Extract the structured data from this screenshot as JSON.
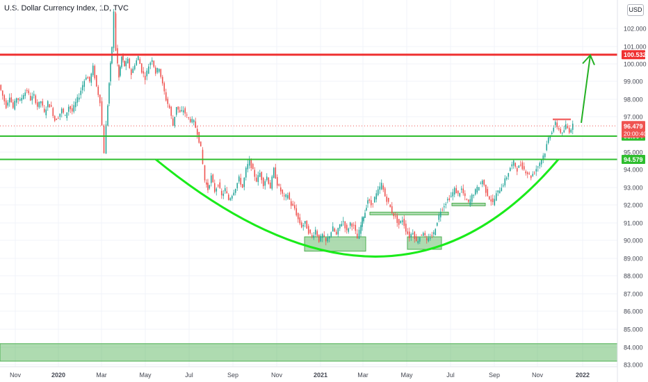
{
  "header": {
    "title": "U.S. Dollar Currency Index, 1D, TVC",
    "currency": "USD"
  },
  "colors": {
    "up": "#26a69a",
    "down": "#ef5350",
    "resistance": "#ef3030",
    "support": "#2ebd2e",
    "arc": "#1aeb1a",
    "arrow": "#22b022",
    "zone_fill": "#4caf50",
    "axis_text": "#434651",
    "grid": "#f0f3fa"
  },
  "chart_data": {
    "type": "candlestick",
    "title": "U.S. Dollar Currency Index, 1D, TVC",
    "ylim": [
      82.8,
      103.8
    ],
    "yticks": [
      "102.000",
      "101.000",
      "100.000",
      "99.000",
      "98.000",
      "97.000",
      "95.000",
      "94.000",
      "93.000",
      "92.000",
      "91.000",
      "90.000",
      "89.000",
      "88.000",
      "87.000",
      "86.000",
      "85.000",
      "84.000",
      "83.000"
    ],
    "xticks": [
      "Nov",
      "2020",
      "Mar",
      "May",
      "Jul",
      "Sep",
      "Nov",
      "2021",
      "Mar",
      "May",
      "Jul",
      "Sep",
      "Nov",
      "2022"
    ],
    "series_path": [
      [
        0,
        98.8
      ],
      [
        5,
        98.2
      ],
      [
        10,
        97.6
      ],
      [
        15,
        98.2
      ],
      [
        20,
        97.5
      ],
      [
        25,
        98.1
      ],
      [
        30,
        97.9
      ],
      [
        35,
        98.3
      ],
      [
        40,
        98.5
      ],
      [
        45,
        98.0
      ],
      [
        50,
        98.2
      ],
      [
        55,
        97.6
      ],
      [
        60,
        97.9
      ],
      [
        65,
        97.2
      ],
      [
        70,
        97.8
      ],
      [
        75,
        97.5
      ],
      [
        80,
        96.8
      ],
      [
        85,
        97.0
      ],
      [
        90,
        97.4
      ],
      [
        95,
        97.0
      ],
      [
        100,
        97.6
      ],
      [
        105,
        97.3
      ],
      [
        110,
        97.8
      ],
      [
        115,
        98.2
      ],
      [
        120,
        98.8
      ],
      [
        125,
        99.3
      ],
      [
        130,
        99.0
      ],
      [
        135,
        99.8
      ],
      [
        140,
        98.7
      ],
      [
        145,
        97.9
      ],
      [
        148,
        96.5
      ],
      [
        151,
        95.0
      ],
      [
        154,
        96.5
      ],
      [
        158,
        98.9
      ],
      [
        162,
        101.0
      ],
      [
        165,
        102.9
      ],
      [
        168,
        100.8
      ],
      [
        172,
        99.2
      ],
      [
        176,
        100.4
      ],
      [
        180,
        99.9
      ],
      [
        185,
        100.2
      ],
      [
        190,
        99.4
      ],
      [
        195,
        100.0
      ],
      [
        200,
        100.4
      ],
      [
        205,
        99.6
      ],
      [
        210,
        99.2
      ],
      [
        215,
        99.9
      ],
      [
        220,
        100.3
      ],
      [
        225,
        99.5
      ],
      [
        230,
        99.8
      ],
      [
        235,
        98.8
      ],
      [
        240,
        98.0
      ],
      [
        245,
        97.5
      ],
      [
        250,
        96.5
      ],
      [
        255,
        97.6
      ],
      [
        260,
        97.2
      ],
      [
        265,
        97.4
      ],
      [
        270,
        97.0
      ],
      [
        275,
        96.8
      ],
      [
        280,
        96.7
      ],
      [
        285,
        96.1
      ],
      [
        290,
        95.2
      ],
      [
        293,
        94.3
      ],
      [
        296,
        93.4
      ],
      [
        300,
        92.9
      ],
      [
        305,
        93.6
      ],
      [
        310,
        92.8
      ],
      [
        315,
        93.2
      ],
      [
        320,
        92.5
      ],
      [
        325,
        92.9
      ],
      [
        330,
        92.3
      ],
      [
        335,
        92.6
      ],
      [
        340,
        93.0
      ],
      [
        345,
        93.5
      ],
      [
        350,
        93.0
      ],
      [
        355,
        94.0
      ],
      [
        360,
        94.5
      ],
      [
        365,
        93.9
      ],
      [
        370,
        93.4
      ],
      [
        375,
        93.8
      ],
      [
        380,
        93.2
      ],
      [
        385,
        93.6
      ],
      [
        390,
        93.0
      ],
      [
        395,
        94.0
      ],
      [
        400,
        93.2
      ],
      [
        405,
        92.8
      ],
      [
        410,
        92.4
      ],
      [
        415,
        92.6
      ],
      [
        420,
        92.0
      ],
      [
        425,
        91.8
      ],
      [
        430,
        91.2
      ],
      [
        435,
        90.8
      ],
      [
        440,
        91.0
      ],
      [
        445,
        90.5
      ],
      [
        450,
        90.2
      ],
      [
        455,
        90.6
      ],
      [
        460,
        90.0
      ],
      [
        465,
        90.3
      ],
      [
        470,
        89.9
      ],
      [
        475,
        90.3
      ],
      [
        480,
        90.7
      ],
      [
        485,
        90.3
      ],
      [
        490,
        90.9
      ],
      [
        495,
        91.1
      ],
      [
        500,
        90.5
      ],
      [
        505,
        91.0
      ],
      [
        510,
        90.8
      ],
      [
        515,
        90.1
      ],
      [
        518,
        90.5
      ],
      [
        522,
        91.2
      ],
      [
        526,
        91.6
      ],
      [
        530,
        92.3
      ],
      [
        535,
        92.0
      ],
      [
        540,
        92.4
      ],
      [
        545,
        92.8
      ],
      [
        550,
        93.2
      ],
      [
        555,
        92.5
      ],
      [
        560,
        92.1
      ],
      [
        565,
        91.6
      ],
      [
        570,
        91.3
      ],
      [
        575,
        90.9
      ],
      [
        580,
        91.2
      ],
      [
        585,
        90.6
      ],
      [
        590,
        90.2
      ],
      [
        595,
        90.5
      ],
      [
        600,
        89.9
      ],
      [
        605,
        90.2
      ],
      [
        610,
        90.5
      ],
      [
        615,
        89.9
      ],
      [
        620,
        90.2
      ],
      [
        625,
        90.4
      ],
      [
        630,
        91.1
      ],
      [
        635,
        91.7
      ],
      [
        640,
        92.0
      ],
      [
        645,
        92.3
      ],
      [
        650,
        92.5
      ],
      [
        655,
        92.9
      ],
      [
        660,
        92.6
      ],
      [
        665,
        92.9
      ],
      [
        670,
        92.4
      ],
      [
        675,
        92.1
      ],
      [
        680,
        92.5
      ],
      [
        685,
        92.8
      ],
      [
        690,
        93.1
      ],
      [
        695,
        93.4
      ],
      [
        700,
        92.8
      ],
      [
        705,
        92.4
      ],
      [
        710,
        92.1
      ],
      [
        715,
        92.6
      ],
      [
        720,
        92.9
      ],
      [
        725,
        93.2
      ],
      [
        730,
        93.6
      ],
      [
        735,
        94.1
      ],
      [
        740,
        94.4
      ],
      [
        745,
        94.0
      ],
      [
        750,
        94.3
      ],
      [
        755,
        94.0
      ],
      [
        760,
        93.8
      ],
      [
        765,
        93.6
      ],
      [
        770,
        93.9
      ],
      [
        775,
        94.2
      ],
      [
        780,
        94.6
      ],
      [
        785,
        95.0
      ],
      [
        790,
        95.8
      ],
      [
        795,
        96.2
      ],
      [
        800,
        96.6
      ],
      [
        805,
        96.3
      ],
      [
        810,
        96.0
      ],
      [
        815,
        96.5
      ],
      [
        820,
        96.2
      ],
      [
        825,
        96.5
      ]
    ],
    "last_price": 96.479,
    "countdown": "20:00:40",
    "horizontal_levels": [
      {
        "label": "100.532",
        "value": 100.532,
        "kind": "resistance"
      },
      {
        "label": "95.904",
        "value": 95.904,
        "kind": "support"
      },
      {
        "label": "94.579",
        "value": 94.579,
        "kind": "support"
      }
    ],
    "rounding_bottom": {
      "start": [
        224,
        94.579
      ],
      "bottom": [
        540,
        89.1
      ],
      "end": [
        803,
        94.579
      ]
    },
    "zones": [
      {
        "x0": 438,
        "x1": 526,
        "y0": 89.4,
        "y1": 90.2
      },
      {
        "x0": 586,
        "x1": 635,
        "y0": 89.5,
        "y1": 90.2
      },
      {
        "x0": 532,
        "x1": 645,
        "y0": 91.45,
        "y1": 91.6
      },
      {
        "x0": 650,
        "x1": 698,
        "y0": 91.95,
        "y1": 92.1
      },
      {
        "x0": 0,
        "x1": 888,
        "y0": 83.2,
        "y1": 84.2
      }
    ],
    "top_marker": {
      "x0": 795,
      "x1": 821,
      "value": 96.85
    },
    "arrow": {
      "from": [
        836,
        96.65
      ],
      "to": [
        849,
        100.5
      ]
    }
  }
}
